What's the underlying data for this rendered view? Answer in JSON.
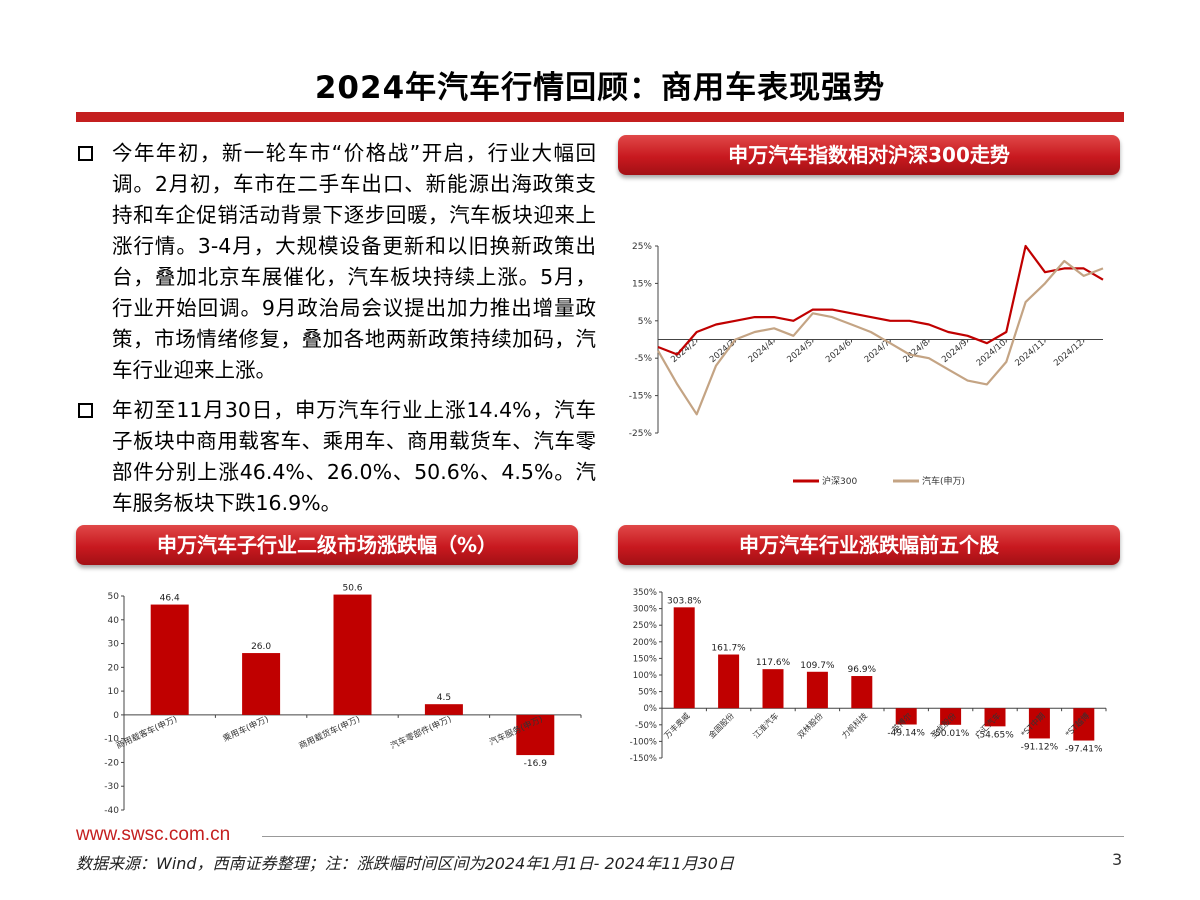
{
  "title": "2024年汽车行情回顾：商用车表现强势",
  "bullets": [
    "今年年初，新一轮车市“价格战”开启，行业大幅回调。2月初，车市在二手车出口、新能源出海政策支持和车企促销活动背景下逐步回暖，汽车板块迎来上涨行情。3-4月，大规模设备更新和以旧换新政策出台，叠加北京车展催化，汽车板块持续上涨。5月，行业开始回调。9月政治局会议提出加力推出增量政策，市场情绪修复，叠加各地两新政策持续加码，汽车行业迎来上涨。",
    "年初至11月30日，申万汽车行业上涨14.4%，汽车子板块中商用载客车、乘用车、商用载货车、汽车零部件分别上涨46.4%、26.0%、50.6%、4.5%。汽车服务板块下跌16.9%。"
  ],
  "banners": {
    "line_chart": "申万汽车指数相对沪深300走势",
    "sub_industry": "申万汽车子行业二级市场涨跌幅（%）",
    "top_stocks": "申万汽车行业涨跌幅前五个股"
  },
  "footer": {
    "url": "www.swsc.com.cn",
    "source": "数据来源：Wind，西南证券整理；注：涨跌幅时间区间为2024年1月1日- 2024年11月30日",
    "page": "3"
  },
  "colors": {
    "accent_red": "#c41f1f",
    "bar_red": "#c00000",
    "line_csi300": "#c00000",
    "line_auto": "#c4a484"
  },
  "chart_data": [
    {
      "type": "line",
      "ylim": [
        -25,
        25
      ],
      "yticks": [
        "25%",
        "15%",
        "5%",
        "-5%",
        "-15%",
        "-25%"
      ],
      "ytick_values": [
        25,
        15,
        5,
        -5,
        -15,
        -25
      ],
      "xticks": [
        "2024/2",
        "2024/3",
        "2024/4",
        "2024/5",
        "2024/6",
        "2024/7",
        "2024/8",
        "2024/9",
        "2024/10",
        "2024/11",
        "2024/12"
      ],
      "x": [
        "2024/1/2",
        "2024/1/22",
        "2024/2/5",
        "2024/2/26",
        "2024/3/11",
        "2024/3/25",
        "2024/4/10",
        "2024/4/24",
        "2024/5/10",
        "2024/5/24",
        "2024/6/7",
        "2024/6/21",
        "2024/7/5",
        "2024/7/19",
        "2024/8/2",
        "2024/8/16",
        "2024/8/30",
        "2024/9/13",
        "2024/9/27",
        "2024/10/8",
        "2024/10/22",
        "2024/11/5",
        "2024/11/19",
        "2024/11/30"
      ],
      "series": [
        {
          "name": "沪深300",
          "color": "#c00000",
          "values": [
            -2,
            -4,
            2,
            4,
            5,
            6,
            6,
            5,
            8,
            8,
            7,
            6,
            5,
            5,
            4,
            2,
            1,
            -1,
            2,
            25,
            18,
            19,
            19,
            16
          ]
        },
        {
          "name": "汽车(申万)",
          "color": "#c4a484",
          "values": [
            -3,
            -12,
            -20,
            -7,
            0,
            2,
            3,
            1,
            7,
            6,
            4,
            2,
            -1,
            -4,
            -5,
            -8,
            -11,
            -12,
            -6,
            10,
            15,
            21,
            17,
            19
          ]
        }
      ],
      "legend": "bottom"
    },
    {
      "type": "bar",
      "categories": [
        "商用载客车(申万)",
        "乘用车(申万)",
        "商用载货车(申万)",
        "汽车零部件(申万)",
        "汽车服务(申万)"
      ],
      "values": [
        46.4,
        26.0,
        50.6,
        4.5,
        -16.9
      ],
      "value_labels": [
        "46.4",
        "26.0",
        "50.6",
        "4.5",
        "-16.9"
      ],
      "ylim": [
        -40,
        50
      ],
      "yticks": [
        "50",
        "40",
        "30",
        "20",
        "10",
        "0",
        "-10",
        "-20",
        "-30",
        "-40"
      ]
    },
    {
      "type": "bar",
      "categories": [
        "万丰奥威",
        "金固股份",
        "江淮汽车",
        "双林股份",
        "力帆科技",
        "英博尔",
        "圣龙股份",
        "广汇汽车",
        "*ST中期",
        "*ST越博"
      ],
      "values": [
        303.8,
        161.7,
        117.6,
        109.7,
        96.9,
        -49.14,
        -50.01,
        -54.65,
        -91.12,
        -97.41
      ],
      "value_labels": [
        "303.8%",
        "161.7%",
        "117.6%",
        "109.7%",
        "96.9%",
        "-49.14%",
        "-50.01%",
        "-54.65%",
        "-91.12%",
        "-97.41%"
      ],
      "ylim": [
        -150,
        350
      ],
      "yticks": [
        "350%",
        "300%",
        "250%",
        "200%",
        "150%",
        "100%",
        "50%",
        "0%",
        "-50%",
        "-100%",
        "-150%"
      ]
    }
  ]
}
